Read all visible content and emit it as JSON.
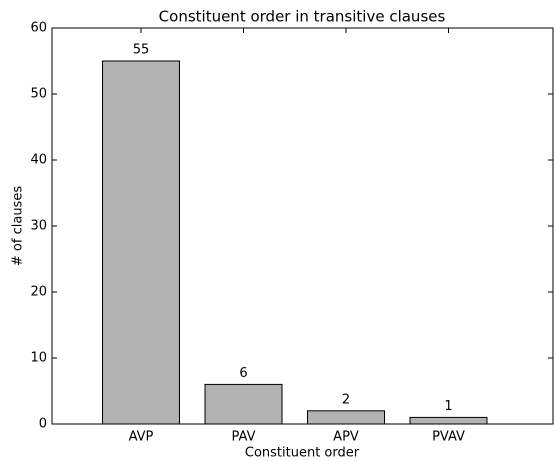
{
  "chart_data": {
    "type": "bar",
    "title": "Constituent order in transitive clauses",
    "xlabel": "Constituent order",
    "ylabel": "# of clauses",
    "categories": [
      "AVP",
      "PAV",
      "APV",
      "PVAV"
    ],
    "values": [
      55,
      6,
      2,
      1
    ],
    "color": "#b2b2b2",
    "ylim": [
      0,
      60
    ],
    "yticks": [
      0,
      10,
      20,
      30,
      40,
      50,
      60
    ]
  }
}
